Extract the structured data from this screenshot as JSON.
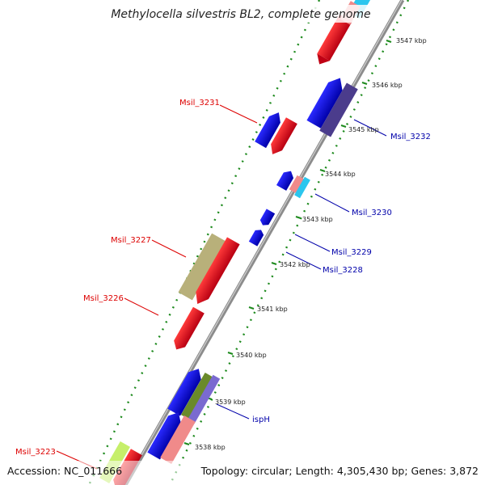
{
  "title": "Methylocella silvestris BL2, complete genome",
  "footer": {
    "accession": "Accession: NC_011666",
    "topology": "Topology: circular; Length: 4,305,430 bp; Genes: 3,872"
  },
  "colors": {
    "backbone": "#8c8c8c",
    "ticks": "#1d8a1d",
    "forward": "#e8001c",
    "reverse": "#0000e6",
    "label_red": "#dd0000",
    "label_blue": "#0000aa",
    "other": "#4b3c8c",
    "pink": "#f08a8a",
    "cyan": "#2bc6ee",
    "khaki": "#b8b07a",
    "olive": "#6a8a2a",
    "lime": "#c6ef6a"
  },
  "kbp_labels": [
    "3547 kbp",
    "3546 kbp",
    "3545 kbp",
    "3544 kbp",
    "3543 kbp",
    "3542 kbp",
    "3541 kbp",
    "3540 kbp",
    "3539 kbp",
    "3538 kbp"
  ],
  "gene_labels": [
    "Msil_3231",
    "Msil_3232",
    "Msil_3230",
    "Msil_3229",
    "Msil_3228",
    "Msil_3227",
    "Msil_3226",
    "ispH",
    "Msil_3223"
  ]
}
